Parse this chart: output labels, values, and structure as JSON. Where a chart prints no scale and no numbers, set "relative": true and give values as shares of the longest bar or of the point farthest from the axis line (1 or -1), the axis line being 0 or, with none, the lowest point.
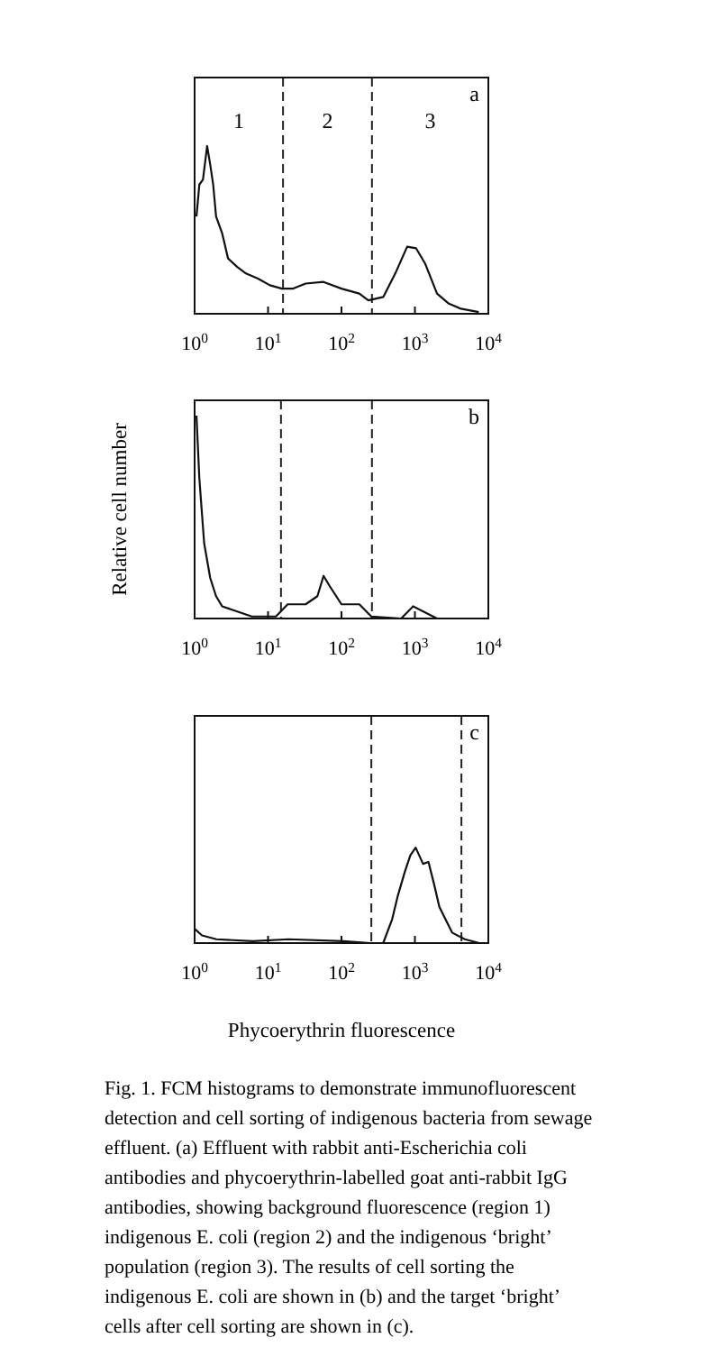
{
  "chart_data": [
    {
      "type": "line",
      "title": "a",
      "relative": true,
      "xlim": [
        1,
        10000
      ],
      "log": "x",
      "line_style": "solid",
      "marker": "none",
      "grid": false,
      "tick_labels": "x",
      "xticks": [
        {
          "value": 1,
          "label": "10$^{0}$"
        },
        {
          "value": 10,
          "label": "10$^{1}$"
        },
        {
          "value": 100,
          "label": "10$^{2}$"
        },
        {
          "value": 1000,
          "label": "10$^{3}$"
        },
        {
          "value": 10000,
          "label": "10$^{4}$"
        }
      ],
      "series": [
        {
          "color": "#111111",
          "x": [
            1.06,
            1.16,
            1.3,
            1.48,
            1.63,
            1.79,
            1.96,
            2.37,
            2.85,
            3.78,
            5,
            7.3,
            10.6,
            15.4,
            22,
            32.5,
            57,
            100,
            175,
            232,
            371,
            540,
            784,
            1040,
            1375,
            2000,
            2900,
            4230,
            7400
          ],
          "values": [
            0.58,
            0.77,
            0.8,
            1,
            0.89,
            0.77,
            0.58,
            0.48,
            0.33,
            0.28,
            0.24,
            0.21,
            0.17,
            0.15,
            0.15,
            0.18,
            0.19,
            0.15,
            0.12,
            0.08,
            0.1,
            0.24,
            0.4,
            0.39,
            0.3,
            0.12,
            0.06,
            0.03,
            0.01
          ]
        }
      ],
      "ref_lines": [
        {
          "axis": "x",
          "value": 16,
          "line_style": "dashed"
        },
        {
          "axis": "x",
          "value": 260,
          "line_style": "dashed"
        }
      ],
      "annotations": [
        "1",
        "2",
        "3"
      ]
    },
    {
      "type": "line",
      "title": "b",
      "ylabel": "Relative cell number",
      "relative": true,
      "xlim": [
        1,
        10000
      ],
      "log": "x",
      "line_style": "solid",
      "marker": "none",
      "grid": false,
      "tick_labels": "x",
      "xticks": [
        {
          "value": 1,
          "label": "10$^{0}$"
        },
        {
          "value": 10,
          "label": "10$^{1}$"
        },
        {
          "value": 100,
          "label": "10$^{2}$"
        },
        {
          "value": 1000,
          "label": "10$^{3}$"
        },
        {
          "value": 10000,
          "label": "10$^{4}$"
        }
      ],
      "series": [
        {
          "color": "#111111",
          "x": [
            1.06,
            1.16,
            1.35,
            1.63,
            1.96,
            2.37,
            3.44,
            6,
            12.8,
            18.5,
            32.5,
            47,
            57,
            69,
            100,
            175,
            255,
            650,
            946,
            2000,
            7400
          ],
          "values": [
            1,
            0.69,
            0.37,
            0.2,
            0.11,
            0.06,
            0.04,
            0.01,
            0.01,
            0.07,
            0.07,
            0.11,
            0.21,
            0.16,
            0.07,
            0.07,
            0.01,
            0,
            0.06,
            0,
            0
          ]
        }
      ],
      "ref_lines": [
        {
          "axis": "x",
          "value": 15,
          "line_style": "dashed"
        },
        {
          "axis": "x",
          "value": 260,
          "line_style": "dashed"
        }
      ]
    },
    {
      "type": "line",
      "title": "c",
      "xlabel": "Phycoerythrin fluorescence",
      "relative": true,
      "xlim": [
        1,
        10000
      ],
      "log": "x",
      "line_style": "solid",
      "marker": "none",
      "grid": false,
      "tick_labels": "x",
      "xticks": [
        {
          "value": 1,
          "label": "10$^{0}$"
        },
        {
          "value": 10,
          "label": "10$^{1}$"
        },
        {
          "value": 100,
          "label": "10$^{2}$"
        },
        {
          "value": 1000,
          "label": "10$^{3}$"
        },
        {
          "value": 10000,
          "label": "10$^{4}$"
        }
      ],
      "series": [
        {
          "color": "#111111",
          "x": [
            1,
            1.26,
            1.98,
            6.2,
            19,
            106,
            248,
            370,
            490,
            582,
            731,
            867,
            1024,
            1290,
            1530,
            1820,
            2150,
            3210,
            4780,
            7530
          ],
          "values": [
            0.15,
            0.08,
            0.04,
            0.02,
            0.04,
            0.02,
            0,
            0,
            0.25,
            0.49,
            0.75,
            0.92,
            1,
            0.83,
            0.85,
            0.62,
            0.38,
            0.11,
            0.04,
            0
          ]
        }
      ],
      "ref_lines": [
        {
          "axis": "x",
          "value": 255,
          "line_style": "dashed"
        },
        {
          "axis": "x",
          "value": 4300,
          "line_style": "dashed"
        }
      ],
      "annotations": [
        "Fig. 1. FCM histograms to demonstrate immunofluorescent detection and cell sorting of indigenous bacteria from sewage effluent. (a) Effluent with rabbit anti-Escherichia coli antibodies and phycoerythrin-labelled goat anti-rabbit IgG antibodies, showing background fluorescence (region 1) indigenous E. coli (region 2) and the indigenous ‘bright’ population (region 3). The results of cell sorting the indigenous E. coli are shown in (b) and the target ‘bright’ cells after cell sorting are shown in (c)."
      ]
    }
  ]
}
